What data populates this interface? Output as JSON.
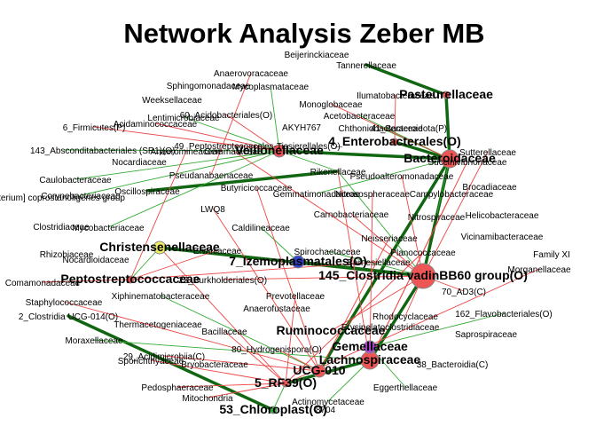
{
  "title": "Network Analysis Zeber MB",
  "nodes": [
    {
      "label": "Beijerinckiaceae",
      "emphasis": "normal"
    },
    {
      "label": "Tannerellaceae",
      "emphasis": "normal"
    },
    {
      "label": "Anaerovoracaceae",
      "emphasis": "normal"
    },
    {
      "label": "Sphingomonadaceae",
      "emphasis": "normal"
    },
    {
      "label": "Mycoplasmataceae",
      "emphasis": "normal"
    },
    {
      "label": "Weeksellaceae",
      "emphasis": "normal"
    },
    {
      "label": "Monoglobaceae",
      "emphasis": "normal"
    },
    {
      "label": "Ilumatobacteraceae",
      "emphasis": "normal"
    },
    {
      "label": "Pasteurellaceae",
      "emphasis": "big"
    },
    {
      "label": "Acidaminococcaceae",
      "emphasis": "normal"
    },
    {
      "label": "60_Acidobacteriales(O)",
      "emphasis": "normal"
    },
    {
      "label": "Lentimicrobiaceae",
      "emphasis": "normal"
    },
    {
      "label": "Acetobacteraceae",
      "emphasis": "normal"
    },
    {
      "label": "6_Firmicutes(P)",
      "emphasis": "normal"
    },
    {
      "label": "AKYH767",
      "emphasis": "normal"
    },
    {
      "label": "Chthoniobacteraceae",
      "emphasis": "normal"
    },
    {
      "label": "41_Bacteroidota(P)",
      "emphasis": "normal"
    },
    {
      "label": "49_Peptostreptococcales-Tissierellales(O)",
      "emphasis": "normal"
    },
    {
      "label": "143_Absconditabacteriales (SR1)(O)",
      "emphasis": "normal"
    },
    {
      "label": "Anaeromineaceae",
      "emphasis": "normal"
    },
    {
      "label": "Gemmataceae",
      "emphasis": "normal"
    },
    {
      "label": "4_Enterobacterales(O)",
      "emphasis": "big"
    },
    {
      "label": "Veillonellaceae",
      "emphasis": "big"
    },
    {
      "label": "Bacteroidaceae",
      "emphasis": "big"
    },
    {
      "label": "Sutterellaceae",
      "emphasis": "normal"
    },
    {
      "label": "Succinivibrionaceae",
      "emphasis": "normal"
    },
    {
      "label": "Nocardiaceae",
      "emphasis": "normal"
    },
    {
      "label": "Caulobacteraceae",
      "emphasis": "normal"
    },
    {
      "label": "Pseudanabaenaceae",
      "emphasis": "normal"
    },
    {
      "label": "Rikenellaceae",
      "emphasis": "normal"
    },
    {
      "label": "Pseudoalteromonadaceae",
      "emphasis": "normal"
    },
    {
      "label": "Brocadiaceae",
      "emphasis": "normal"
    },
    {
      "label": "[Eubacterium] coprostanoligenes group",
      "emphasis": "normal"
    },
    {
      "label": "Corynebacteriaceae",
      "emphasis": "normal"
    },
    {
      "label": "Oscillospiraceae",
      "emphasis": "normal"
    },
    {
      "label": "Butyricicoccaceae",
      "emphasis": "normal"
    },
    {
      "label": "Gemmatimonadaceae",
      "emphasis": "normal"
    },
    {
      "label": "Nitrosospheraceae",
      "emphasis": "normal"
    },
    {
      "label": "Campylobacteraceae",
      "emphasis": "normal"
    },
    {
      "label": "Clostridiaceae",
      "emphasis": "normal"
    },
    {
      "label": "Mycobacteriaceae",
      "emphasis": "normal"
    },
    {
      "label": "LWQ8",
      "emphasis": "normal"
    },
    {
      "label": "Carnobacteriaceae",
      "emphasis": "normal"
    },
    {
      "label": "Nitrospiraceae",
      "emphasis": "normal"
    },
    {
      "label": "Helicobacteraceae",
      "emphasis": "normal"
    },
    {
      "label": "Caldilineaceae",
      "emphasis": "normal"
    },
    {
      "label": "Neisseriaceae",
      "emphasis": "normal"
    },
    {
      "label": "Vicinamibacteraceae",
      "emphasis": "normal"
    },
    {
      "label": "Rhizobiaceae",
      "emphasis": "normal"
    },
    {
      "label": "Christensenellaceae",
      "emphasis": "big"
    },
    {
      "label": "Erwiniaceae",
      "emphasis": "normal"
    },
    {
      "label": "Family XI",
      "emphasis": "normal"
    },
    {
      "label": "Nocardioidaceae",
      "emphasis": "normal"
    },
    {
      "label": "Spirochaetaceae",
      "emphasis": "normal"
    },
    {
      "label": "Planococcaceae",
      "emphasis": "normal"
    },
    {
      "label": "7_Izemoplasmatales(O)",
      "emphasis": "big"
    },
    {
      "label": "Barnesiellaceae",
      "emphasis": "normal"
    },
    {
      "label": "145_Clostridia vadinBB60 group(O)",
      "emphasis": "big"
    },
    {
      "label": "Comamonadaceae",
      "emphasis": "normal"
    },
    {
      "label": "Peptostreptococcaceae",
      "emphasis": "big"
    },
    {
      "label": "22_Burkholderiales(O)",
      "emphasis": "normal"
    },
    {
      "label": "Morganellaceae",
      "emphasis": "normal"
    },
    {
      "label": "Xiphinematobacteraceae",
      "emphasis": "normal"
    },
    {
      "label": "Prevotellaceae",
      "emphasis": "normal"
    },
    {
      "label": "70_AD3(C)",
      "emphasis": "normal"
    },
    {
      "label": "Staphylococcaceae",
      "emphasis": "normal"
    },
    {
      "label": "Anaerofustaceae",
      "emphasis": "normal"
    },
    {
      "label": "2_Clostridia UCG-014(O)",
      "emphasis": "normal"
    },
    {
      "label": "Thermacetogeniaceae",
      "emphasis": "normal"
    },
    {
      "label": "Rhodocyclaceae",
      "emphasis": "normal"
    },
    {
      "label": "162_Flavobacteriales(O)",
      "emphasis": "normal"
    },
    {
      "label": "Erysipelatoclostridiaceae",
      "emphasis": "normal"
    },
    {
      "label": "Bacillaceae",
      "emphasis": "normal"
    },
    {
      "label": "Ruminococcaceae",
      "emphasis": "big"
    },
    {
      "label": "Moraxellaceae",
      "emphasis": "normal"
    },
    {
      "label": "Saprospiraceae",
      "emphasis": "normal"
    },
    {
      "label": "Gemellaceae",
      "emphasis": "big"
    },
    {
      "label": "80_Hydrogenispora(O)",
      "emphasis": "normal"
    },
    {
      "label": "29_Acidimicrobiia(C)",
      "emphasis": "normal"
    },
    {
      "label": "Lachnospiraceae",
      "emphasis": "big"
    },
    {
      "label": "38_Bacteroidia(C)",
      "emphasis": "normal"
    },
    {
      "label": "Sporichthyaceae",
      "emphasis": "normal"
    },
    {
      "label": "Bryobacteraceae",
      "emphasis": "normal"
    },
    {
      "label": "UCG-010",
      "emphasis": "big"
    },
    {
      "label": "Pedosphaeraceae",
      "emphasis": "normal"
    },
    {
      "label": "5_RF39(O)",
      "emphasis": "big"
    },
    {
      "label": "Eggerthellaceae",
      "emphasis": "normal"
    },
    {
      "label": "Mitochondria",
      "emphasis": "normal"
    },
    {
      "label": "Actinomycetaceae",
      "emphasis": "normal"
    },
    {
      "label": "53_Chloroplast(O)",
      "emphasis": "big"
    },
    {
      "label": "8704",
      "emphasis": "normal"
    }
  ],
  "markers": [
    {
      "node": 57,
      "color": "#ee5555",
      "size": "large"
    },
    {
      "node": 23,
      "color": "#ee5555",
      "size": "medium"
    },
    {
      "node": 79,
      "color": "#ee5555",
      "size": "medium"
    },
    {
      "node": 83,
      "color": "#ee5555",
      "size": "small"
    },
    {
      "node": 22,
      "color": "#ee5555",
      "size": "small"
    },
    {
      "node": 76,
      "color": "#aa44cc",
      "size": "small"
    },
    {
      "node": 55,
      "color": "#3344cc",
      "size": "small"
    },
    {
      "node": 49,
      "color": "#eeee66",
      "size": "small"
    },
    {
      "node": 85,
      "color": "#ee5555",
      "size": "tiny"
    },
    {
      "node": 59,
      "color": "#ee5555",
      "size": "tiny"
    },
    {
      "node": 89,
      "color": "#33aa33",
      "size": "tiny"
    },
    {
      "node": 8,
      "color": "#ee5555",
      "size": "tiny"
    },
    {
      "node": 21,
      "color": "#ee5555",
      "size": "tiny"
    }
  ],
  "edges": [
    {
      "from": 1,
      "to": 8,
      "sign": "positive",
      "strong": true
    },
    {
      "from": 8,
      "to": 23,
      "sign": "positive",
      "strong": true
    },
    {
      "from": 21,
      "to": 23,
      "sign": "positive",
      "strong": true
    },
    {
      "from": 22,
      "to": 23,
      "sign": "positive",
      "strong": true
    },
    {
      "from": 23,
      "to": 57,
      "sign": "positive",
      "strong": true
    },
    {
      "from": 57,
      "to": 79,
      "sign": "positive",
      "strong": true
    },
    {
      "from": 79,
      "to": 85,
      "sign": "positive",
      "strong": true
    },
    {
      "from": 67,
      "to": 89,
      "sign": "positive",
      "strong": true
    },
    {
      "from": 49,
      "to": 57,
      "sign": "positive",
      "strong": true
    },
    {
      "from": 34,
      "to": 29,
      "sign": "positive",
      "strong": true
    },
    {
      "from": 23,
      "to": 83,
      "sign": "positive",
      "strong": true
    },
    {
      "from": 55,
      "to": 57,
      "sign": "positive",
      "strong": true
    },
    {
      "from": 4,
      "to": 22,
      "sign": "positive",
      "strong": false
    },
    {
      "from": 12,
      "to": 23,
      "sign": "positive",
      "strong": false
    },
    {
      "from": 15,
      "to": 23,
      "sign": "positive",
      "strong": false
    },
    {
      "from": 17,
      "to": 22,
      "sign": "positive",
      "strong": false
    },
    {
      "from": 18,
      "to": 22,
      "sign": "positive",
      "strong": false
    },
    {
      "from": 40,
      "to": 22,
      "sign": "positive",
      "strong": false
    },
    {
      "from": 33,
      "to": 22,
      "sign": "positive",
      "strong": false
    },
    {
      "from": 29,
      "to": 57,
      "sign": "positive",
      "strong": false
    },
    {
      "from": 43,
      "to": 23,
      "sign": "positive",
      "strong": false
    },
    {
      "from": 49,
      "to": 59,
      "sign": "positive",
      "strong": false
    },
    {
      "from": 53,
      "to": 57,
      "sign": "positive",
      "strong": false
    },
    {
      "from": 70,
      "to": 76,
      "sign": "positive",
      "strong": false
    },
    {
      "from": 74,
      "to": 79,
      "sign": "positive",
      "strong": false
    },
    {
      "from": 86,
      "to": 76,
      "sign": "positive",
      "strong": false
    },
    {
      "from": 85,
      "to": 89,
      "sign": "positive",
      "strong": false
    },
    {
      "from": 88,
      "to": 79,
      "sign": "positive",
      "strong": false
    },
    {
      "from": 45,
      "to": 55,
      "sign": "positive",
      "strong": false
    },
    {
      "from": 11,
      "to": 29,
      "sign": "positive",
      "strong": false
    },
    {
      "from": 36,
      "to": 23,
      "sign": "positive",
      "strong": false
    },
    {
      "from": 27,
      "to": 22,
      "sign": "positive",
      "strong": false
    },
    {
      "from": 62,
      "to": 83,
      "sign": "positive",
      "strong": false
    },
    {
      "from": 13,
      "to": 22,
      "sign": "negative",
      "strong": false
    },
    {
      "from": 9,
      "to": 22,
      "sign": "negative",
      "strong": false
    },
    {
      "from": 19,
      "to": 59,
      "sign": "negative",
      "strong": false
    },
    {
      "from": 20,
      "to": 57,
      "sign": "negative",
      "strong": false
    },
    {
      "from": 24,
      "to": 57,
      "sign": "negative",
      "strong": false
    },
    {
      "from": 25,
      "to": 79,
      "sign": "negative",
      "strong": false
    },
    {
      "from": 29,
      "to": 79,
      "sign": "negative",
      "strong": false
    },
    {
      "from": 30,
      "to": 57,
      "sign": "negative",
      "strong": false
    },
    {
      "from": 37,
      "to": 79,
      "sign": "negative",
      "strong": false
    },
    {
      "from": 38,
      "to": 79,
      "sign": "negative",
      "strong": false
    },
    {
      "from": 35,
      "to": 83,
      "sign": "negative",
      "strong": false
    },
    {
      "from": 41,
      "to": 83,
      "sign": "negative",
      "strong": false
    },
    {
      "from": 42,
      "to": 57,
      "sign": "negative",
      "strong": false
    },
    {
      "from": 46,
      "to": 83,
      "sign": "negative",
      "strong": false
    },
    {
      "from": 49,
      "to": 85,
      "sign": "negative",
      "strong": false
    },
    {
      "from": 50,
      "to": 59,
      "sign": "negative",
      "strong": false
    },
    {
      "from": 54,
      "to": 85,
      "sign": "negative",
      "strong": false
    },
    {
      "from": 56,
      "to": 59,
      "sign": "negative",
      "strong": false
    },
    {
      "from": 60,
      "to": 57,
      "sign": "negative",
      "strong": false
    },
    {
      "from": 61,
      "to": 85,
      "sign": "negative",
      "strong": false
    },
    {
      "from": 63,
      "to": 85,
      "sign": "negative",
      "strong": false
    },
    {
      "from": 65,
      "to": 83,
      "sign": "negative",
      "strong": false
    },
    {
      "from": 69,
      "to": 57,
      "sign": "negative",
      "strong": false
    },
    {
      "from": 72,
      "to": 85,
      "sign": "negative",
      "strong": false
    },
    {
      "from": 77,
      "to": 83,
      "sign": "negative",
      "strong": false
    },
    {
      "from": 78,
      "to": 83,
      "sign": "negative",
      "strong": false
    },
    {
      "from": 81,
      "to": 85,
      "sign": "negative",
      "strong": false
    },
    {
      "from": 84,
      "to": 85,
      "sign": "negative",
      "strong": false
    },
    {
      "from": 87,
      "to": 85,
      "sign": "negative",
      "strong": false
    },
    {
      "from": 6,
      "to": 23,
      "sign": "negative",
      "strong": false
    },
    {
      "from": 2,
      "to": 28,
      "sign": "negative",
      "strong": false
    },
    {
      "from": 10,
      "to": 22,
      "sign": "negative",
      "strong": false
    },
    {
      "from": 7,
      "to": 21,
      "sign": "negative",
      "strong": false
    },
    {
      "from": 58,
      "to": 59,
      "sign": "negative",
      "strong": false
    },
    {
      "from": 64,
      "to": 57,
      "sign": "negative",
      "strong": false
    },
    {
      "from": 73,
      "to": 57,
      "sign": "negative",
      "strong": false
    }
  ],
  "colors": {
    "positive_edge": "#33aa33",
    "strong_positive_edge": "#116611",
    "negative_edge": "#ee4444",
    "node_border": "#888888"
  }
}
